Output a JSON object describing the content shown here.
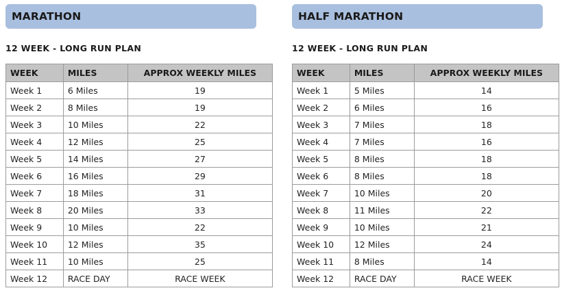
{
  "marathon": {
    "title": "MARATHON",
    "subtitle": "12 WEEK - LONG RUN PLAN",
    "headers": [
      "WEEK",
      "MILES",
      "APPROX WEEKLY MILES"
    ],
    "rows": [
      [
        "Week 1",
        "6 Miles",
        "19"
      ],
      [
        "Week 2",
        "8 Miles",
        "19"
      ],
      [
        "Week 3",
        "10 Miles",
        "22"
      ],
      [
        "Week 4",
        "12 Miles",
        "25"
      ],
      [
        "Week 5",
        "14 Miles",
        "27"
      ],
      [
        "Week 6",
        "16 Miles",
        "29"
      ],
      [
        "Week 7",
        "18 Miles",
        "31"
      ],
      [
        "Week 8",
        "20 Miles",
        "33"
      ],
      [
        "Week 9",
        "10 Miles",
        "22"
      ],
      [
        "Week 10",
        "12 Miles",
        "35"
      ],
      [
        "Week 11",
        "10 Miles",
        "25"
      ],
      [
        "Week 12",
        "RACE DAY",
        "RACE WEEK"
      ]
    ]
  },
  "half_marathon": {
    "title": "HALF MARATHON",
    "subtitle": "12 WEEK - LONG RUN PLAN",
    "headers": [
      "WEEK",
      "MILES",
      "APPROX WEEKLY MILES"
    ],
    "rows": [
      [
        "Week 1",
        "5 Miles",
        "14"
      ],
      [
        "Week 2",
        "6 Miles",
        "16"
      ],
      [
        "Week 3",
        "7 Miles",
        "18"
      ],
      [
        "Week 4",
        "7 Miles",
        "16"
      ],
      [
        "Week 5",
        "8 Miles",
        "18"
      ],
      [
        "Week 6",
        "8 Miles",
        "18"
      ],
      [
        "Week 7",
        "10 Miles",
        "20"
      ],
      [
        "Week 8",
        "11 Miles",
        "22"
      ],
      [
        "Week 9",
        "10 Miles",
        "21"
      ],
      [
        "Week 10",
        "12 Miles",
        "24"
      ],
      [
        "Week 11",
        "8 Miles",
        "14"
      ],
      [
        "Week 12",
        "RACE DAY",
        "RACE WEEK"
      ]
    ]
  },
  "colors": {
    "title_bar": "#a9bfdf",
    "header_row": "#c4c4c4",
    "grid": "#9a9a9a"
  }
}
